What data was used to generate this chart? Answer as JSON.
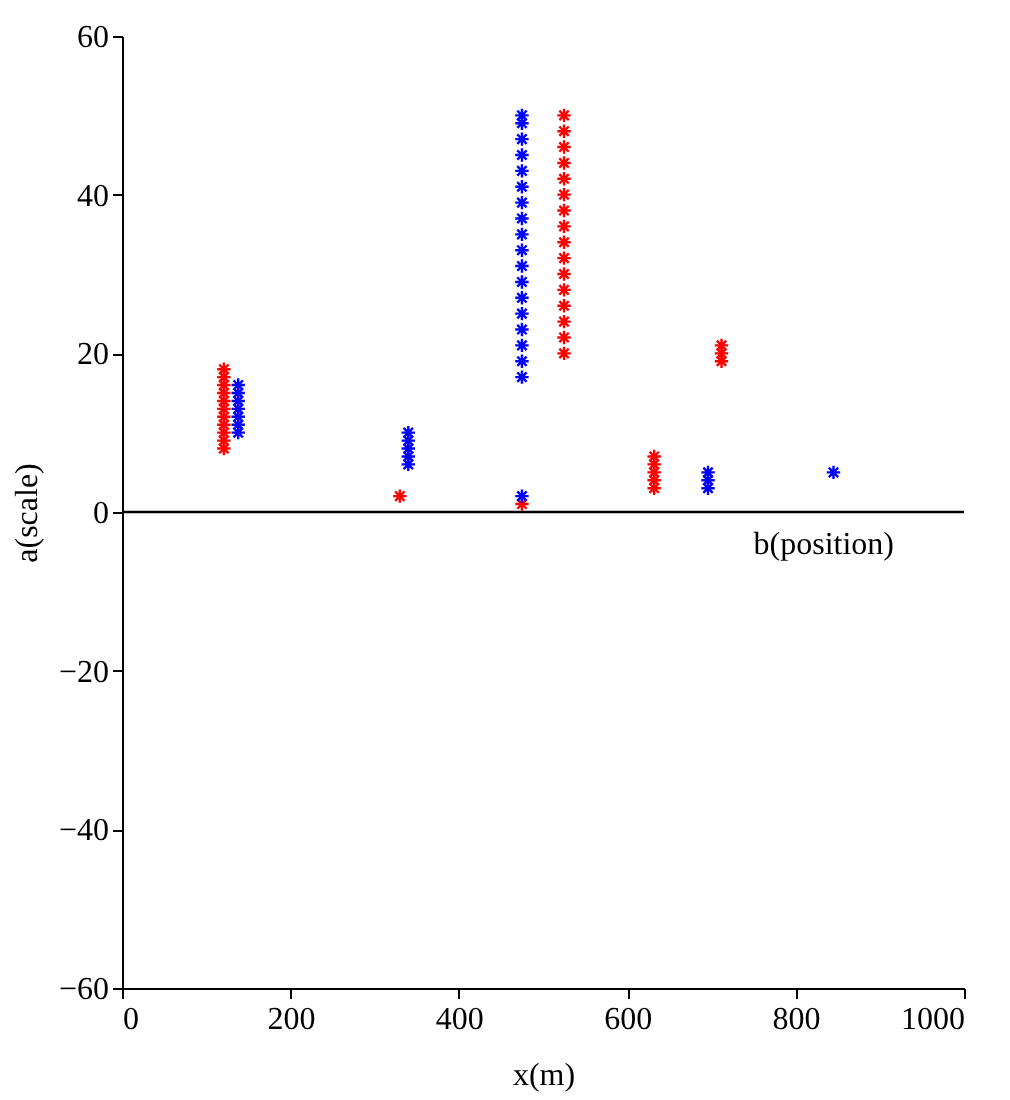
{
  "chart_data": {
    "type": "scatter",
    "xlabel": "x(m)",
    "ylabel": "a(scale)",
    "xlim": [
      0,
      1000
    ],
    "xticks": [
      0,
      200,
      400,
      600,
      800,
      1000
    ],
    "ylim": [
      -60,
      60
    ],
    "yticks": [
      -60,
      -40,
      -20,
      0,
      20,
      40,
      60
    ],
    "grid": false,
    "marker": "cross",
    "ref_lines": [
      {
        "axis": "y",
        "value": 0,
        "label": "b(position)"
      }
    ],
    "series": [
      {
        "color": "#ff0000",
        "x": [
          121,
          121,
          121,
          121,
          121,
          121,
          121,
          121,
          121,
          121,
          121,
          330,
          475,
          525,
          525,
          525,
          525,
          525,
          525,
          525,
          525,
          525,
          525,
          525,
          525,
          525,
          525,
          525,
          525,
          632,
          632,
          632,
          632,
          632,
          712,
          712,
          712
        ],
        "values": [
          8,
          9,
          10,
          11,
          12,
          13,
          14,
          15,
          16,
          17,
          18,
          2,
          1,
          20,
          22,
          24,
          26,
          28,
          30,
          32,
          34,
          36,
          38,
          40,
          42,
          44,
          46,
          48,
          50,
          3,
          4,
          5,
          6,
          7,
          19,
          20,
          21
        ]
      },
      {
        "color": "#0000ff",
        "x": [
          138,
          138,
          138,
          138,
          138,
          138,
          138,
          340,
          340,
          340,
          340,
          340,
          475,
          475,
          475,
          475,
          475,
          475,
          475,
          475,
          475,
          475,
          475,
          475,
          475,
          475,
          475,
          475,
          475,
          475,
          475,
          696,
          696,
          696,
          845
        ],
        "values": [
          10,
          11,
          12,
          13,
          14,
          15,
          16,
          6,
          7,
          8,
          9,
          10,
          17,
          19,
          21,
          23,
          25,
          27,
          29,
          31,
          33,
          35,
          37,
          39,
          41,
          43,
          45,
          47,
          49,
          50,
          2,
          3,
          4,
          5,
          5
        ]
      }
    ]
  }
}
